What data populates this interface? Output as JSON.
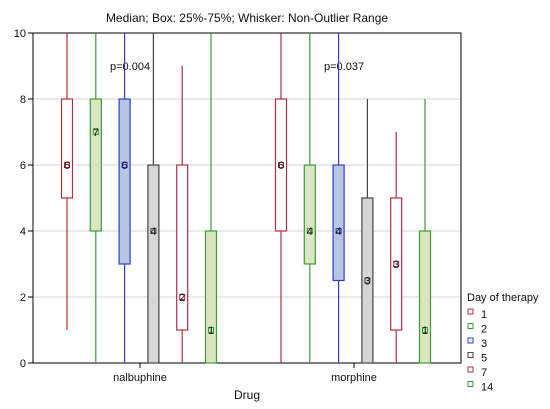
{
  "chart_data": {
    "type": "box",
    "title": "Median; Box: 25%-75%; Whisker: Non-Outlier Range",
    "xlabel": "Drug",
    "ylabel": "",
    "ylim": [
      0,
      10
    ],
    "yticks": [
      0,
      2,
      4,
      6,
      8,
      10
    ],
    "grid": true,
    "categories": [
      "nalbuphine",
      "morphine"
    ],
    "legend": {
      "title": "Day of therapy",
      "position": "right-bottom"
    },
    "annotations": [
      {
        "group": "nalbuphine",
        "text": "p=0.004"
      },
      {
        "group": "morphine",
        "text": "p=0.037"
      }
    ],
    "series": [
      {
        "name": "1",
        "colors": {
          "stroke": "#b03040",
          "fill": "#ffffff"
        },
        "boxes": [
          {
            "min": 1,
            "q1": 5,
            "median": 6,
            "q3": 8,
            "max": 10,
            "label": "6"
          },
          {
            "min": 0,
            "q1": 4,
            "median": 6,
            "q3": 8,
            "max": 10,
            "label": "6"
          }
        ]
      },
      {
        "name": "2",
        "colors": {
          "stroke": "#3c9a3c",
          "fill": "#dbe6c0"
        },
        "boxes": [
          {
            "min": 0,
            "q1": 4,
            "median": 7,
            "q3": 8,
            "max": 10,
            "label": "7"
          },
          {
            "min": 0,
            "q1": 3,
            "median": 4,
            "q3": 6,
            "max": 10,
            "label": "4"
          }
        ]
      },
      {
        "name": "3",
        "colors": {
          "stroke": "#3a3ac8",
          "fill": "#b4c8e4"
        },
        "boxes": [
          {
            "min": 0,
            "q1": 3,
            "median": 6,
            "q3": 8,
            "max": 10,
            "label": "6"
          },
          {
            "min": 0,
            "q1": 2.5,
            "median": 4,
            "q3": 6,
            "max": 10,
            "label": "4"
          }
        ]
      },
      {
        "name": "5",
        "colors": {
          "stroke": "#444444",
          "fill": "#d6d6d6"
        },
        "boxes": [
          {
            "min": 0,
            "q1": 0,
            "median": 4,
            "q3": 6,
            "max": 10,
            "label": "4"
          },
          {
            "min": 0,
            "q1": 0,
            "median": 2.5,
            "q3": 5,
            "max": 8,
            "label": "3"
          }
        ]
      },
      {
        "name": "7",
        "colors": {
          "stroke": "#b03040",
          "fill": "#ffffff"
        },
        "boxes": [
          {
            "min": 0,
            "q1": 1,
            "median": 2,
            "q3": 6,
            "max": 9,
            "label": "2"
          },
          {
            "min": 0,
            "q1": 1,
            "median": 3,
            "q3": 5,
            "max": 7,
            "label": "3"
          }
        ]
      },
      {
        "name": "14",
        "colors": {
          "stroke": "#3c9a3c",
          "fill": "#dbe6c0"
        },
        "boxes": [
          {
            "min": 0,
            "q1": 0,
            "median": 1,
            "q3": 4,
            "max": 10,
            "label": "1"
          },
          {
            "min": 0,
            "q1": 0,
            "median": 1,
            "q3": 4,
            "max": 8,
            "label": "1"
          }
        ]
      }
    ]
  }
}
